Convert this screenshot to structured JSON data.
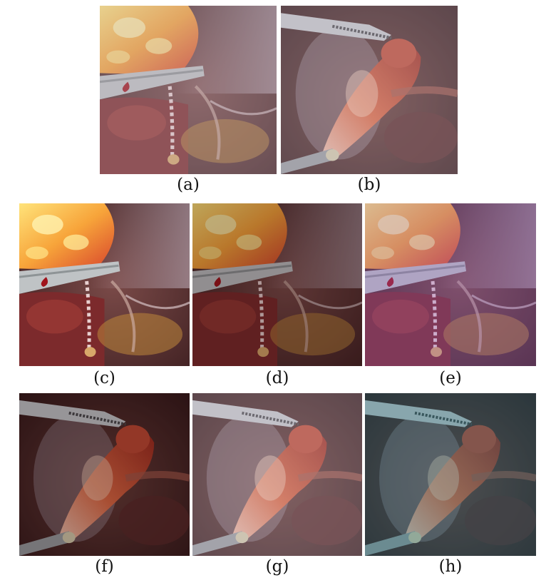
{
  "figure": {
    "panels": [
      {
        "id": "a",
        "label": "(a)",
        "scene": "fat",
        "tone": "hazy"
      },
      {
        "id": "b",
        "label": "(b)",
        "scene": "tissue",
        "tone": "hazy"
      },
      {
        "id": "c",
        "label": "(c)",
        "scene": "fat",
        "tone": "clear"
      },
      {
        "id": "d",
        "label": "(d)",
        "scene": "fat",
        "tone": "dark"
      },
      {
        "id": "e",
        "label": "(e)",
        "scene": "fat",
        "tone": "purple"
      },
      {
        "id": "f",
        "label": "(f)",
        "scene": "tissue",
        "tone": "dark"
      },
      {
        "id": "g",
        "label": "(g)",
        "scene": "tissue",
        "tone": "hazy"
      },
      {
        "id": "h",
        "label": "(h)",
        "scene": "tissue",
        "tone": "teal"
      }
    ]
  }
}
